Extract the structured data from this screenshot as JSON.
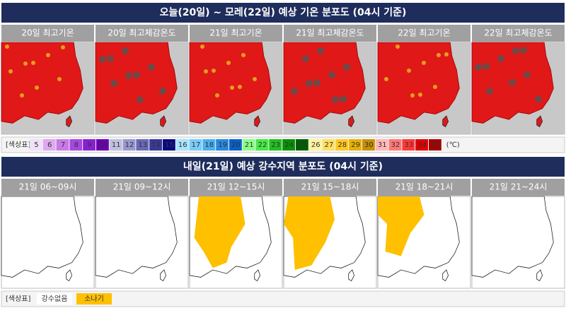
{
  "temperature": {
    "title": "오늘(20일) ~ 모레(22일) 예상 기온 분포도 (04시 기준)",
    "panels": [
      "20일 최고기온",
      "20일 최고체감온도",
      "21일 최고기온",
      "21일 최고체감온도",
      "22일 최고기온",
      "22일 최고체감온도"
    ],
    "legend": {
      "label": "[색상표]",
      "unit": "(℃)",
      "items": [
        {
          "value": 5,
          "color": "#f0e0f8"
        },
        {
          "value": 6,
          "color": "#e0a8f0"
        },
        {
          "value": 7,
          "color": "#c878e8"
        },
        {
          "value": 8,
          "color": "#a848e0"
        },
        {
          "value": 9,
          "color": "#8a20d0"
        },
        {
          "value": 10,
          "color": "#6a00b0"
        },
        {
          "value": 11,
          "color": "#c0c0e0"
        },
        {
          "value": 12,
          "color": "#9898d0"
        },
        {
          "value": 13,
          "color": "#6868b8"
        },
        {
          "value": 14,
          "color": "#383898"
        },
        {
          "value": 15,
          "color": "#0a0a80"
        },
        {
          "value": 16,
          "color": "#a8e4ff"
        },
        {
          "value": 17,
          "color": "#78ccf8"
        },
        {
          "value": 18,
          "color": "#48b0f0"
        },
        {
          "value": 19,
          "color": "#2888e0"
        },
        {
          "value": 20,
          "color": "#0860c8"
        },
        {
          "value": 21,
          "color": "#88ff88"
        },
        {
          "value": 22,
          "color": "#48e848"
        },
        {
          "value": 23,
          "color": "#20c020"
        },
        {
          "value": 24,
          "color": "#089008"
        },
        {
          "value": 25,
          "color": "#006000"
        },
        {
          "value": 26,
          "color": "#fff4a0"
        },
        {
          "value": 27,
          "color": "#ffe060"
        },
        {
          "value": 28,
          "color": "#ffc820"
        },
        {
          "value": 29,
          "color": "#e8b000"
        },
        {
          "value": 30,
          "color": "#c89000"
        },
        {
          "value": 31,
          "color": "#ffb8b8"
        },
        {
          "value": 32,
          "color": "#ff7878"
        },
        {
          "value": 33,
          "color": "#ff3838"
        },
        {
          "value": 34,
          "color": "#e00000"
        },
        {
          "value": 35,
          "color": "#a80000"
        }
      ]
    }
  },
  "precipitation": {
    "title": "내일(21일) 예상 강수지역 분포도 (04시 기준)",
    "panels": [
      "21일 06~09시",
      "21일 09~12시",
      "21일 12~15시",
      "21일 15~18시",
      "21일 18~21시",
      "21일 21~24시"
    ],
    "legend": {
      "label": "[색상표]",
      "items": [
        {
          "label": "강수없음",
          "color": "#ffffff"
        },
        {
          "label": "소나기",
          "color": "#ffc000"
        }
      ]
    }
  }
}
